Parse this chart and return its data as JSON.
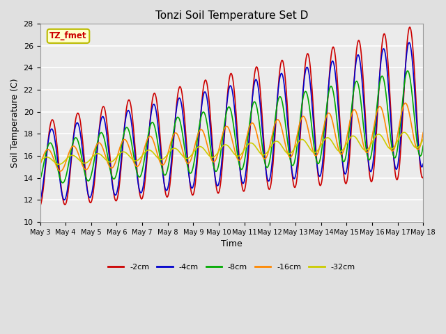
{
  "title": "Tonzi Soil Temperature Set D",
  "xlabel": "Time",
  "ylabel": "Soil Temperature (C)",
  "ylim": [
    10,
    28
  ],
  "yticks": [
    10,
    12,
    14,
    16,
    18,
    20,
    22,
    24,
    26,
    28
  ],
  "x_tick_labels": [
    "May 3",
    "May 4",
    "May 5",
    "May 6",
    "May 7",
    "May 8",
    "May 9",
    "May 10",
    "May 11",
    "May 12",
    "May 13",
    "May 14",
    "May 15",
    "May 16",
    "May 17",
    "May 18"
  ],
  "legend_label": "TZ_fmet",
  "series": [
    {
      "label": "-2cm",
      "color": "#cc0000",
      "lw": 1.2
    },
    {
      "label": "-4cm",
      "color": "#0000cc",
      "lw": 1.2
    },
    {
      "label": "-8cm",
      "color": "#00aa00",
      "lw": 1.2
    },
    {
      "label": "-16cm",
      "color": "#ff8800",
      "lw": 1.2
    },
    {
      "label": "-32cm",
      "color": "#cccc00",
      "lw": 1.2
    }
  ],
  "background_color": "#e0e0e0",
  "plot_bg_color": "#ebebeb",
  "grid_color": "#ffffff",
  "annotation_box_color": "#ffffcc",
  "annotation_text_color": "#cc0000",
  "annotation_border_color": "#bbbb00"
}
